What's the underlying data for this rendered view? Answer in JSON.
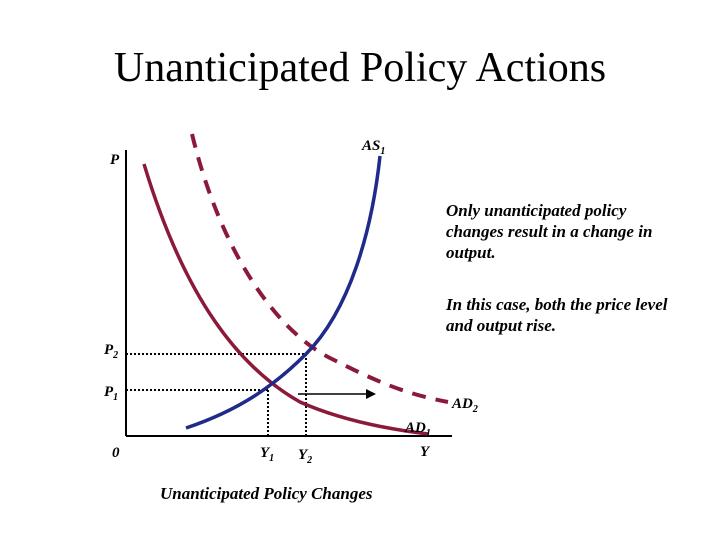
{
  "title": "Unanticipated Policy Actions",
  "axes": {
    "y_label": "P",
    "x_label": "Y",
    "origin": "0",
    "p1": {
      "base": "P",
      "sub": "1"
    },
    "p2": {
      "base": "P",
      "sub": "2"
    },
    "y1": {
      "base": "Y",
      "sub": "1"
    },
    "y2": {
      "base": "Y",
      "sub": "2"
    }
  },
  "curves": {
    "as1": {
      "base": "AS",
      "sub": "1",
      "color": "#1f2a8a"
    },
    "ad1": {
      "base": "AD",
      "sub": "1",
      "color": "#8b1a3a"
    },
    "ad2": {
      "base": "AD",
      "sub": "2",
      "color": "#8b1a3a",
      "style": "dashed"
    }
  },
  "notes": {
    "line1": "Only unanticipated policy changes result in a change in output.",
    "line2": "In this case, both the price level and output rise."
  },
  "caption": "Unanticipated Policy Changes"
}
